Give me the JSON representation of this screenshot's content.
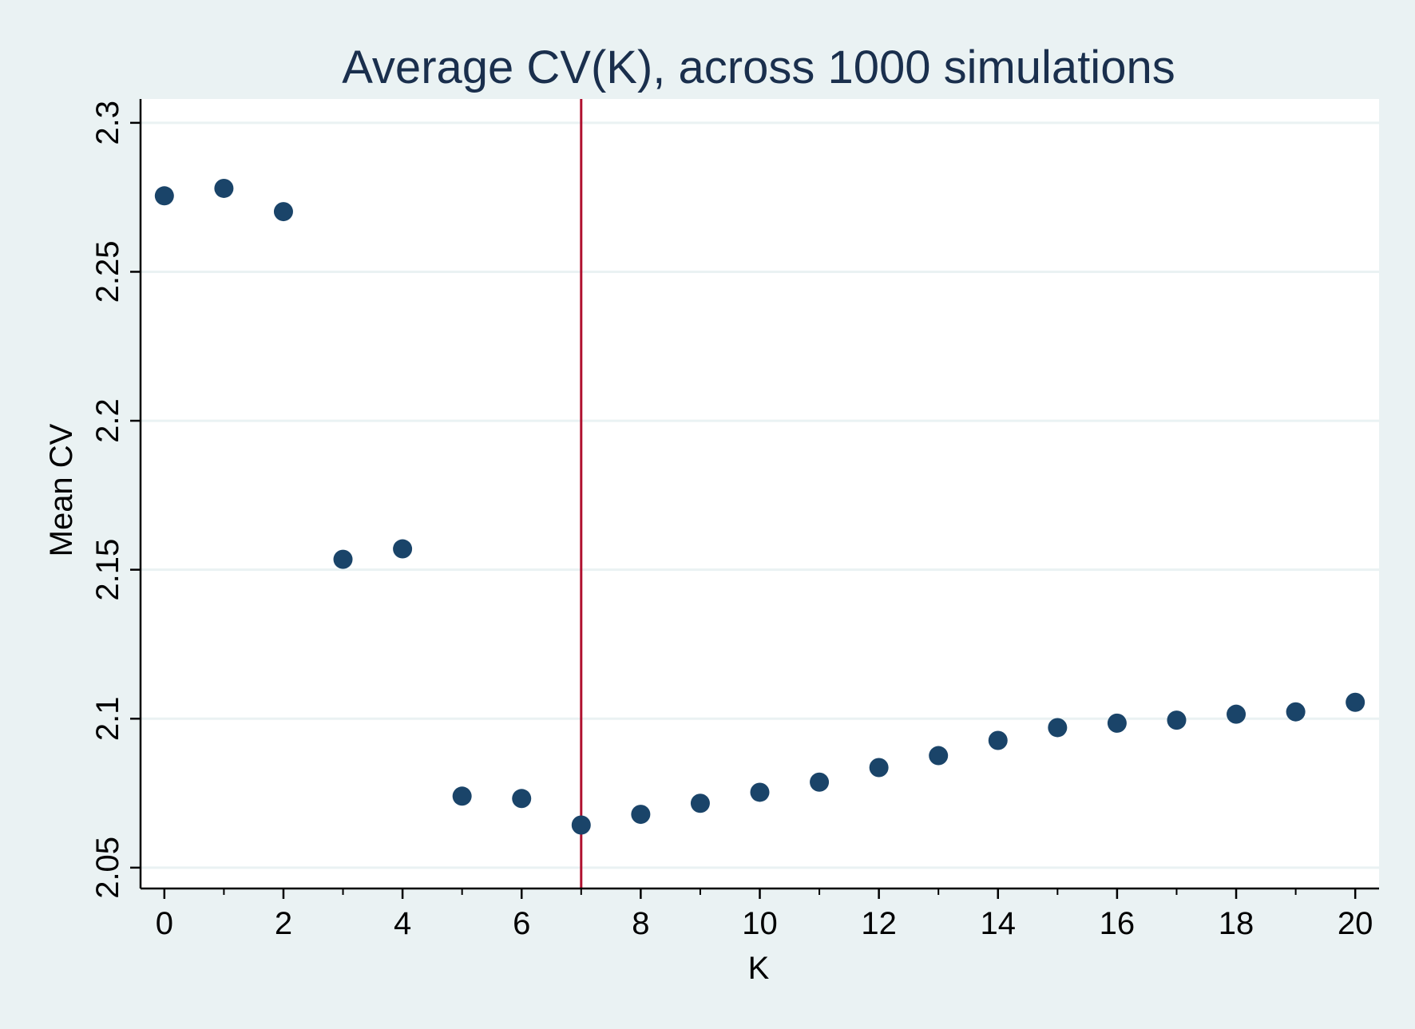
{
  "chart_data": {
    "type": "scatter",
    "title": "Average CV(K), across 1000 simulations",
    "xlabel": "K",
    "ylabel": "Mean CV",
    "xlim": [
      -0.4,
      20.4
    ],
    "ylim": [
      2.043,
      2.308
    ],
    "x_ticks": [
      0,
      2,
      4,
      6,
      8,
      10,
      12,
      14,
      16,
      18,
      20
    ],
    "x_tick_labels": [
      "0",
      "2",
      "4",
      "6",
      "8",
      "10",
      "12",
      "14",
      "16",
      "18",
      "20"
    ],
    "x_minor_ticks": [
      1,
      3,
      5,
      7,
      9,
      11,
      13,
      15,
      17,
      19
    ],
    "y_ticks": [
      2.05,
      2.1,
      2.15,
      2.2,
      2.25,
      2.3
    ],
    "y_tick_labels": [
      "2.05",
      "2.1",
      "2.15",
      "2.2",
      "2.25",
      "2.3"
    ],
    "grid": true,
    "vertical_reference_line": 7,
    "series": [
      {
        "x": [
          0,
          1,
          2,
          3,
          4,
          5,
          6,
          7,
          8,
          9,
          10,
          11,
          12,
          13,
          14,
          15,
          16,
          17,
          18,
          19,
          20
        ],
        "y": [
          2.2755,
          2.278,
          2.2702,
          2.1535,
          2.157,
          2.074,
          2.0732,
          2.0643,
          2.0679,
          2.0716,
          2.0753,
          2.0787,
          2.0836,
          2.0876,
          2.0927,
          2.097,
          2.0985,
          2.0995,
          2.1015,
          2.1023,
          2.1055
        ]
      }
    ],
    "colors": {
      "marker": "#1a4469",
      "reference_line": "#b0102f",
      "grid": "#eaf2f3",
      "plot_background": "#ffffff",
      "figure_background": "#eaf2f3",
      "title": "#1a2f4d"
    }
  }
}
